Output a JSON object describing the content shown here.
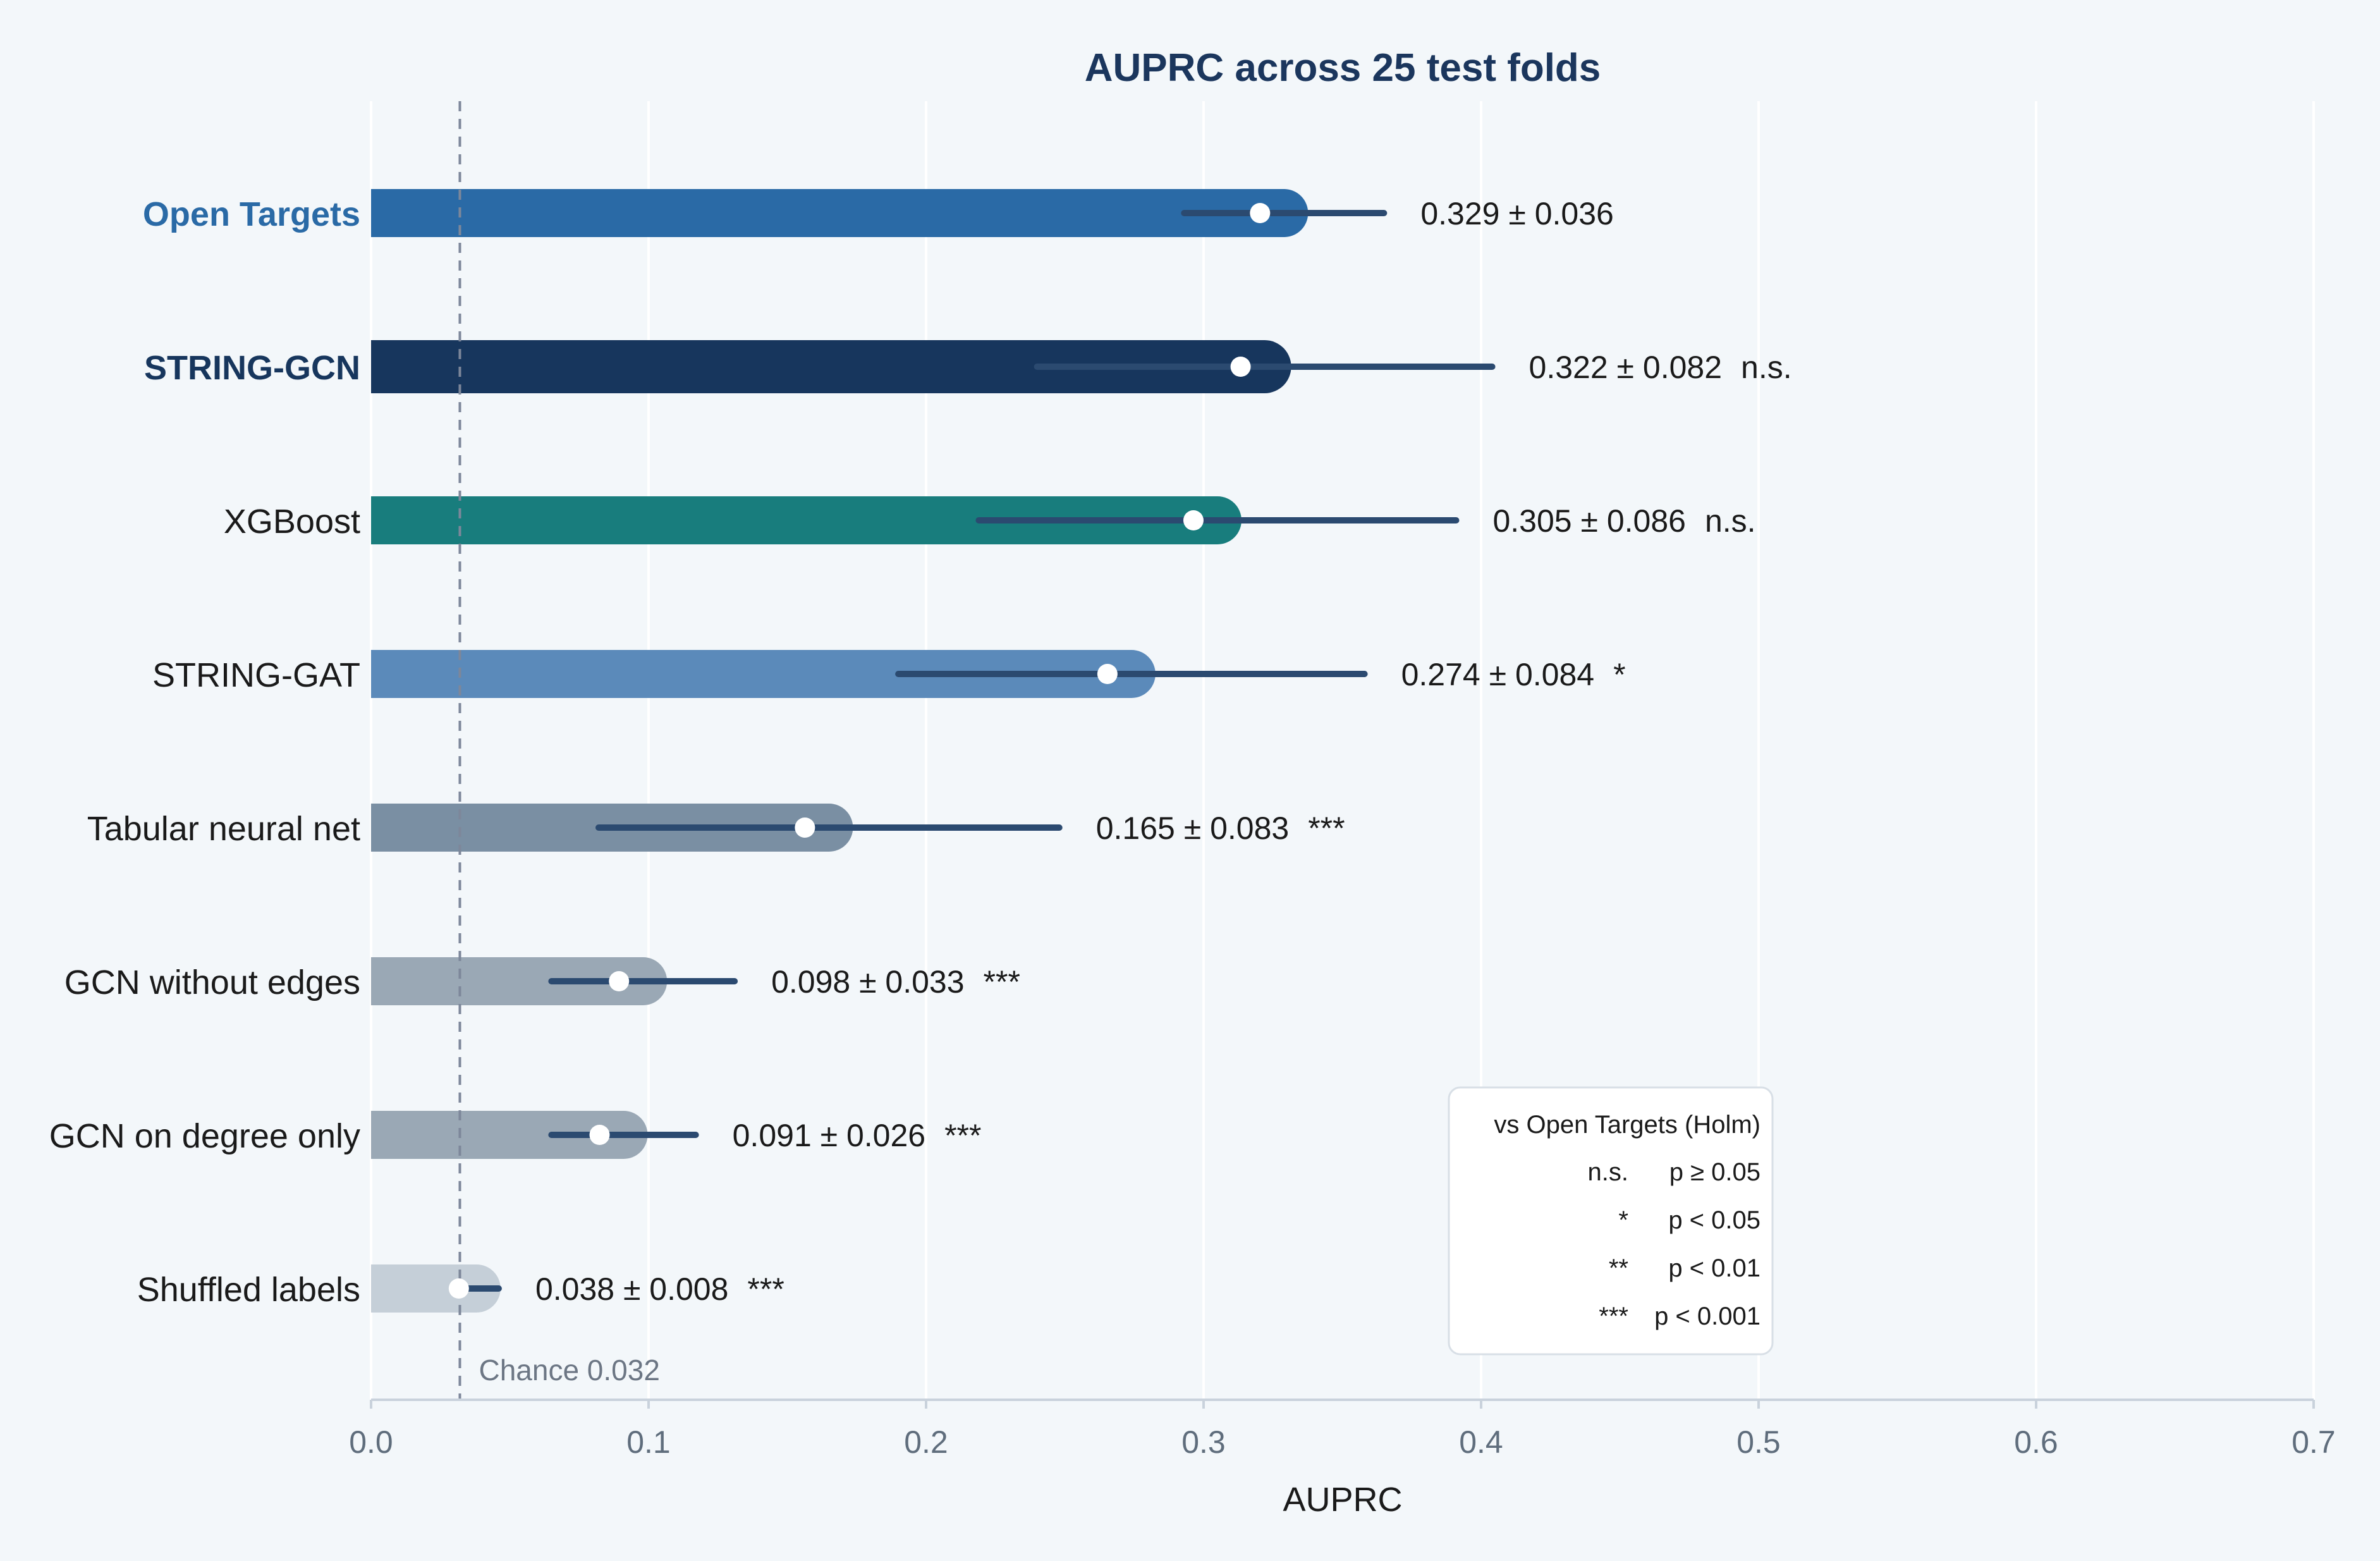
{
  "colors": {
    "background": "#f3f7fa",
    "title": "#1b365d",
    "errorbar": "#2b4a70",
    "grid": "#ffffff",
    "axis": "#c9d2dc",
    "tick_text": "#5f6d7c",
    "chance_line": "#7d879a",
    "label_text": "#1a1a1a",
    "highlight_open_targets": "#2a6aa6",
    "highlight_string_gcn": "#17365d"
  },
  "chart_data": {
    "type": "bar",
    "orientation": "horizontal",
    "title": "AUPRC across 25 test folds",
    "xlabel": "AUPRC",
    "ylabel": "",
    "xlim": [
      0.0,
      0.7
    ],
    "xticks": [
      "0.0",
      "0.1",
      "0.2",
      "0.3",
      "0.4",
      "0.5",
      "0.6",
      "0.7"
    ],
    "grid": "vertical",
    "categories": [
      "Open Targets",
      "STRING-GCN",
      "XGBoost",
      "STRING-GAT",
      "Tabular neural net",
      "GCN without edges",
      "GCN on degree only",
      "Shuffled labels"
    ],
    "bar_colors": [
      "#2a6aa6",
      "#17365d",
      "#187d7d",
      "#5b8aba",
      "#7a8fa3",
      "#9aa8b5",
      "#9aa8b5",
      "#c5cfd8"
    ],
    "values": [
      0.329,
      0.322,
      0.305,
      0.274,
      0.165,
      0.098,
      0.091,
      0.038
    ],
    "errors": [
      0.036,
      0.082,
      0.086,
      0.084,
      0.083,
      0.033,
      0.026,
      0.008
    ],
    "value_labels": [
      "0.329 ± 0.036",
      "0.322 ± 0.082",
      "0.305 ± 0.086",
      "0.274 ± 0.084",
      "0.165 ± 0.083",
      "0.098 ± 0.033",
      "0.091 ± 0.026",
      "0.038 ± 0.008"
    ],
    "significance": [
      "",
      "n.s.",
      "n.s.",
      "*",
      "***",
      "***",
      "***",
      "***"
    ],
    "label_styles": [
      "highlight-blue",
      "highlight-navy",
      "normal",
      "normal",
      "normal",
      "normal",
      "normal",
      "normal"
    ],
    "reference_line": {
      "value": 0.032,
      "label": "Chance 0.032"
    },
    "legend": {
      "title": "vs Open Targets (Holm)",
      "placement": "lower-right",
      "entries": [
        {
          "symbol": "n.s.",
          "text": "p ≥ 0.05"
        },
        {
          "symbol": "*",
          "text": "p < 0.05"
        },
        {
          "symbol": "**",
          "text": "p < 0.01"
        },
        {
          "symbol": "***",
          "text": "p < 0.001"
        }
      ]
    }
  }
}
